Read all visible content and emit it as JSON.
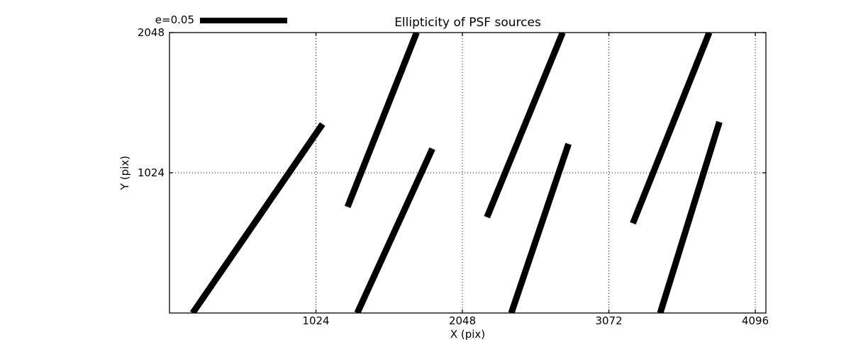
{
  "chart_data": {
    "type": "line",
    "title": "Ellipticity of PSF sources",
    "xlabel": "X (pix)",
    "ylabel": "Y (pix)",
    "xlim": [
      0,
      4170
    ],
    "ylim": [
      0,
      2048
    ],
    "xticks": [
      1024,
      2048,
      3072,
      4096
    ],
    "yticks": [
      1024,
      2048
    ],
    "grid": true,
    "grid_style": "dotted black",
    "line_color": "#000000",
    "background": "#ffffff",
    "series_note": "PSF ellipticity whisker segments, endpoints in pixel data coordinates, clipped at axes box",
    "segments": [
      {
        "x1": 162,
        "y1": 0,
        "x2": 1070,
        "y2": 1380
      },
      {
        "x1": 1245,
        "y1": 775,
        "x2": 1728,
        "y2": 2048
      },
      {
        "x1": 1313,
        "y1": 0,
        "x2": 1838,
        "y2": 1200
      },
      {
        "x1": 2220,
        "y1": 700,
        "x2": 2749,
        "y2": 2048
      },
      {
        "x1": 2390,
        "y1": 0,
        "x2": 2790,
        "y2": 1235
      },
      {
        "x1": 3240,
        "y1": 655,
        "x2": 3774,
        "y2": 2048
      },
      {
        "x1": 3431,
        "y1": 0,
        "x2": 3845,
        "y2": 1395
      }
    ]
  },
  "legend": {
    "label": "e=0.05",
    "position": "upper left, above axes"
  }
}
